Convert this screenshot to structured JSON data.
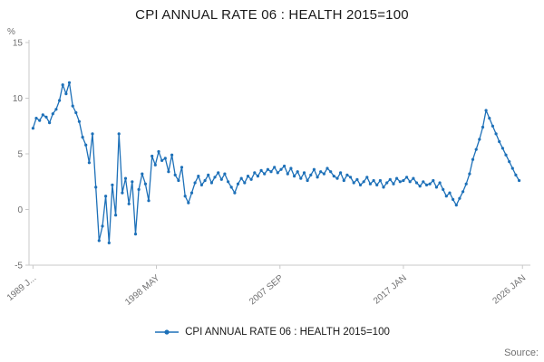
{
  "title": "CPI ANNUAL RATE 06 : HEALTH 2015=100",
  "source_label": "Source:",
  "legend": {
    "label": "CPI ANNUAL RATE 06 : HEALTH 2015=100"
  },
  "colors": {
    "line": "#1d70b8",
    "axis": "#c8c8c8",
    "tick_text": "#707071"
  },
  "chart_data": {
    "type": "line",
    "title": "CPI ANNUAL RATE 06 : HEALTH 2015=100",
    "xlabel": "",
    "ylabel": "%",
    "ylim": [
      -5,
      15
    ],
    "y_ticks": [
      15,
      10,
      5,
      0,
      -5
    ],
    "x_domain": [
      1988.7,
      2026.6
    ],
    "x_ticks": [
      {
        "year": 1989.0,
        "label": "1989 J..."
      },
      {
        "year": 1998.33,
        "label": "1998 MAY"
      },
      {
        "year": 2007.67,
        "label": "2007 SEP"
      },
      {
        "year": 2017.0,
        "label": "2017 JAN"
      },
      {
        "year": 2026.0,
        "label": "2026 JAN"
      }
    ],
    "grid": false,
    "legend_position": "bottom",
    "series": [
      {
        "name": "CPI ANNUAL RATE 06 : HEALTH 2015=100",
        "color": "#1d70b8",
        "marker": "circle",
        "start_year": 1989.0,
        "interval_years": 0.25,
        "values": [
          7.3,
          8.2,
          8.0,
          8.5,
          8.3,
          7.8,
          8.6,
          9.0,
          9.8,
          11.2,
          10.4,
          11.4,
          9.3,
          8.7,
          7.9,
          6.5,
          5.8,
          4.2,
          6.8,
          2.0,
          -2.8,
          -1.5,
          1.2,
          -3.0,
          2.2,
          -0.5,
          6.8,
          1.5,
          2.8,
          0.5,
          2.5,
          -2.2,
          1.8,
          3.2,
          2.3,
          0.8,
          4.8,
          4.0,
          5.2,
          4.4,
          4.6,
          3.4,
          4.9,
          3.1,
          2.6,
          3.8,
          1.2,
          0.6,
          1.5,
          2.4,
          3.0,
          2.2,
          2.6,
          3.1,
          2.4,
          2.9,
          3.3,
          2.7,
          3.2,
          2.5,
          2.0,
          1.5,
          2.3,
          2.8,
          2.4,
          3.0,
          2.7,
          3.3,
          3.0,
          3.5,
          3.2,
          3.6,
          3.4,
          3.8,
          3.3,
          3.6,
          3.9,
          3.2,
          3.7,
          3.0,
          3.4,
          2.8,
          3.3,
          2.6,
          3.1,
          3.6,
          2.9,
          3.4,
          3.2,
          3.7,
          3.4,
          3.0,
          2.8,
          3.3,
          2.6,
          3.1,
          2.9,
          2.4,
          2.7,
          2.2,
          2.5,
          2.9,
          2.3,
          2.6,
          2.2,
          2.6,
          2.0,
          2.4,
          2.7,
          2.3,
          2.8,
          2.5,
          2.6,
          2.9,
          2.5,
          2.8,
          2.4,
          2.1,
          2.5,
          2.2,
          2.3,
          2.6,
          2.0,
          2.4,
          1.8,
          1.2,
          1.5,
          0.9,
          0.4,
          1.0,
          1.6,
          2.3,
          3.2,
          4.5,
          5.4,
          6.3,
          7.4,
          8.9,
          8.2,
          7.5,
          6.8,
          6.1,
          5.5,
          4.9,
          4.3,
          3.7,
          3.1,
          2.6
        ]
      }
    ]
  }
}
